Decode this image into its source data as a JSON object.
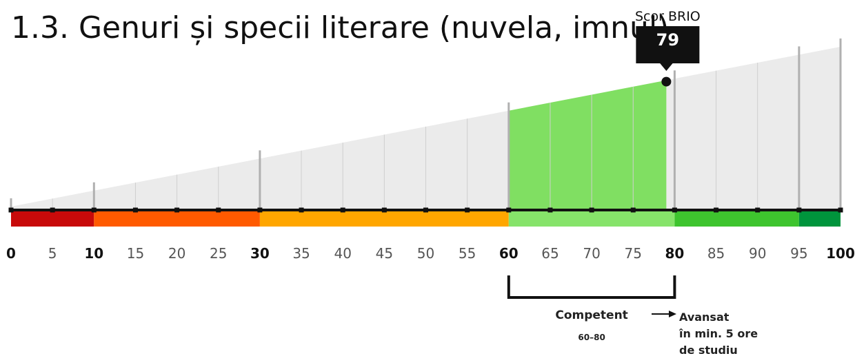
{
  "title": "1.3. Genuri și specii literare (nuvela, imnul)",
  "score": {
    "label": "Scor BRIO",
    "value": 79
  },
  "scale": {
    "min": 0,
    "max": 100,
    "ticks": [
      0,
      5,
      10,
      15,
      20,
      25,
      30,
      35,
      40,
      45,
      50,
      55,
      60,
      65,
      70,
      75,
      80,
      85,
      90,
      95,
      100
    ],
    "bold_ticks": [
      0,
      10,
      30,
      60,
      80,
      100
    ],
    "major_ticks": [
      0,
      10,
      30,
      60,
      80,
      95,
      100
    ],
    "bands": [
      {
        "from": 0,
        "to": 10,
        "color": "#c80a0a"
      },
      {
        "from": 10,
        "to": 30,
        "color": "#ff5a00"
      },
      {
        "from": 30,
        "to": 60,
        "color": "#ffa600"
      },
      {
        "from": 60,
        "to": 80,
        "color": "#86e36a"
      },
      {
        "from": 80,
        "to": 95,
        "color": "#3ec42e"
      },
      {
        "from": 95,
        "to": 100,
        "color": "#00943c"
      }
    ]
  },
  "level": {
    "name": "Competent",
    "range": "60–80",
    "from": 60,
    "to": 80,
    "color": "#80df62"
  },
  "next": {
    "lines": [
      "Avansat",
      "în min. 5 ore",
      "de studiu"
    ]
  }
}
